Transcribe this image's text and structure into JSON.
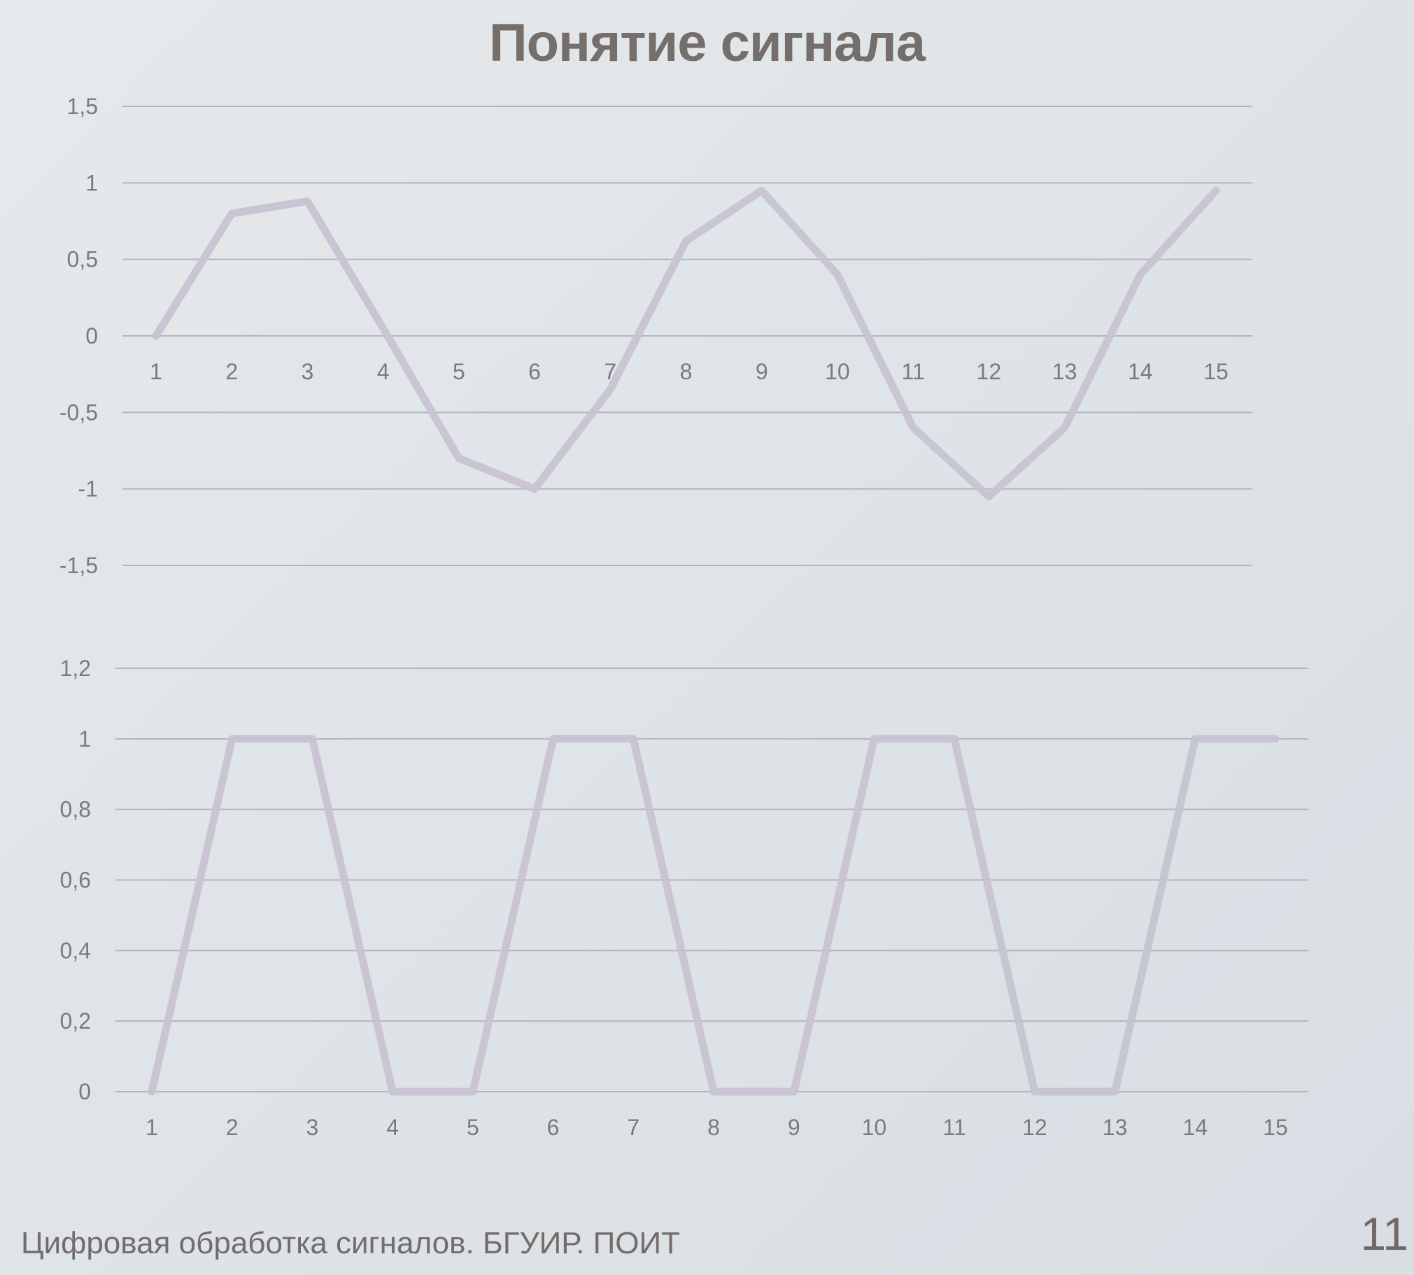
{
  "slide": {
    "title": "Понятие сигнала",
    "footer": "Цифровая обработка сигналов. БГУИР. ПОИТ",
    "page_number": "11"
  },
  "colors": {
    "background": "#e2e6ea",
    "line": "#c7c3d2",
    "grid": "#b3b6b8",
    "text": "#7d7a7a"
  },
  "chart_data": [
    {
      "type": "line",
      "title": "",
      "xlabel": "",
      "ylabel": "",
      "categories": [
        "1",
        "2",
        "3",
        "4",
        "5",
        "6",
        "7",
        "8",
        "9",
        "10",
        "11",
        "12",
        "13",
        "14",
        "15"
      ],
      "y_ticks": [
        "1,5",
        "1",
        "0,5",
        "0",
        "-0,5",
        "-1",
        "-1,5"
      ],
      "y_tick_values": [
        1.5,
        1,
        0.5,
        0,
        -0.5,
        -1,
        -1.5
      ],
      "ylim": [
        -1.5,
        1.5
      ],
      "grid": true,
      "legend": "none",
      "series": [
        {
          "values": [
            0.0,
            0.8,
            0.88,
            0.05,
            -0.8,
            -1.0,
            -0.35,
            0.62,
            0.95,
            0.4,
            -0.6,
            -1.05,
            -0.6,
            0.4,
            0.95
          ]
        }
      ]
    },
    {
      "type": "line",
      "title": "",
      "xlabel": "",
      "ylabel": "",
      "categories": [
        "1",
        "2",
        "3",
        "4",
        "5",
        "6",
        "7",
        "8",
        "9",
        "10",
        "11",
        "12",
        "13",
        "14",
        "15"
      ],
      "y_ticks": [
        "1,2",
        "1",
        "0,8",
        "0,6",
        "0,4",
        "0,2",
        "0"
      ],
      "y_tick_values": [
        1.2,
        1,
        0.8,
        0.6,
        0.4,
        0.2,
        0
      ],
      "ylim": [
        0,
        1.2
      ],
      "grid": true,
      "legend": "none",
      "series": [
        {
          "values": [
            0,
            1,
            1,
            0,
            0,
            1,
            1,
            0,
            0,
            1,
            1,
            0,
            0,
            1,
            1
          ]
        }
      ]
    }
  ]
}
